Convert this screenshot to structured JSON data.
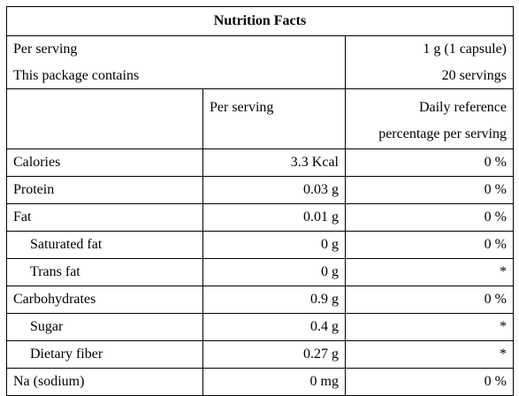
{
  "title": "Nutrition Facts",
  "serving": {
    "label": "Per serving",
    "value": "1 g (1 capsule)"
  },
  "package": {
    "label": "This package contains",
    "value": "20 servings"
  },
  "table": {
    "header": [
      "Per serving",
      [
        "Daily reference",
        "percentage per serving"
      ]
    ],
    "rows": [
      {
        "name": "Calories",
        "amount": "3.3 Kcal",
        "daily": "0 %",
        "indent": false
      },
      {
        "name": "Protein",
        "amount": "0.03 g",
        "daily": "0 %",
        "indent": false
      },
      {
        "name": "Fat",
        "amount": "0.01 g",
        "daily": "0 %",
        "indent": false
      },
      {
        "name": "Saturated fat",
        "amount": "0 g",
        "daily": "0 %",
        "indent": true
      },
      {
        "name": "Trans fat",
        "amount": "0 g",
        "daily": "*",
        "indent": true
      },
      {
        "name": "Carbohydrates",
        "amount": "0.9 g",
        "daily": "0 %",
        "indent": false
      },
      {
        "name": "Sugar",
        "amount": "0.4 g",
        "daily": "*",
        "indent": true
      },
      {
        "name": "Dietary fiber",
        "amount": "0.27 g",
        "daily": "*",
        "indent": true
      },
      {
        "name": "Na (sodium)",
        "amount": "0 mg",
        "daily": "0 %",
        "indent": false
      }
    ]
  }
}
